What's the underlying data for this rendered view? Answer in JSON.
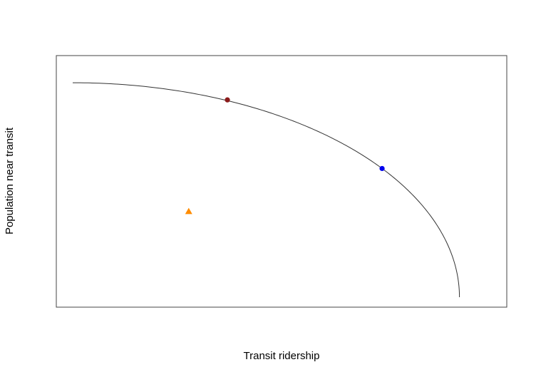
{
  "chart_data": {
    "type": "scatter",
    "title": "",
    "xlabel": "Transit ridership",
    "ylabel": "Population near transit",
    "xlim": [
      0,
      1.08
    ],
    "ylim": [
      0,
      1.08
    ],
    "ticks": false,
    "grid": false,
    "legend": "none",
    "frontier": {
      "shape": "quarter-ellipse",
      "x_intercept": 1.0,
      "y_intercept": 1.0,
      "color": "#333333"
    },
    "points": [
      {
        "x": 0.4,
        "y": 0.92,
        "marker": "circle",
        "color": "#8b1a1a"
      },
      {
        "x": 0.8,
        "y": 0.6,
        "marker": "circle",
        "color": "#0000ee"
      },
      {
        "x": 0.3,
        "y": 0.4,
        "marker": "triangle",
        "color": "#ff8c00"
      }
    ]
  }
}
